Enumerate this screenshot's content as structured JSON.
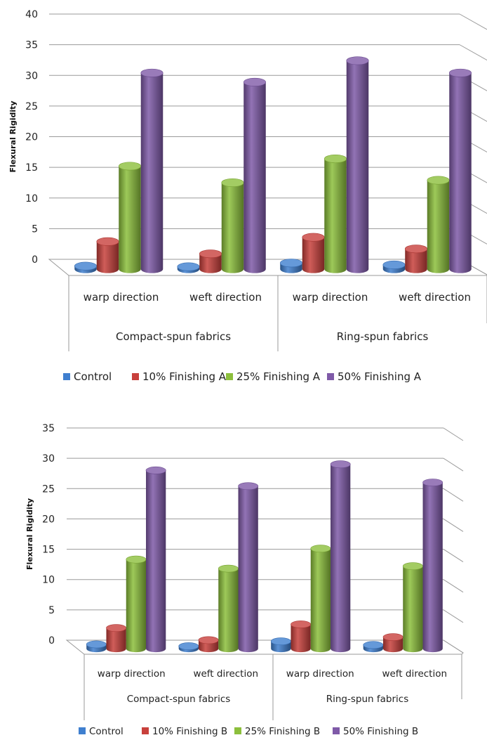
{
  "chart_data": [
    {
      "type": "bar",
      "ylabel": "Flexural Rigidity",
      "ylim": [
        0,
        40
      ],
      "yticks": [
        0,
        5,
        10,
        15,
        20,
        25,
        30,
        35,
        40
      ],
      "categories": [
        "warp direction",
        "weft direction",
        "warp direction",
        "weft direction"
      ],
      "groups": [
        "Compact-spun fabrics",
        "Ring-spun fabrics"
      ],
      "series": [
        {
          "name": "Control",
          "color": "#3f7fcf",
          "values": [
            0.5,
            0.4,
            1.0,
            0.7
          ]
        },
        {
          "name": "10% Finishing A",
          "color": "#c8403c",
          "values": [
            4.5,
            2.5,
            5.2,
            3.3
          ]
        },
        {
          "name": "25% Finishing A",
          "color": "#8cbf3c",
          "values": [
            16.8,
            14.1,
            18.0,
            14.5
          ]
        },
        {
          "name": "50% Finishing A",
          "color": "#7f5aa8",
          "values": [
            32.0,
            30.5,
            34.0,
            32.0
          ]
        }
      ],
      "legend": "bottom",
      "grid": true
    },
    {
      "type": "bar",
      "ylabel": "Flexural Rigidity",
      "ylim": [
        0,
        35
      ],
      "yticks": [
        0,
        5,
        10,
        15,
        20,
        25,
        30,
        35
      ],
      "categories": [
        "warp direction",
        "weft direction",
        "warp direction",
        "weft direction"
      ],
      "groups": [
        "Compact-spun fabrics",
        "Ring-spun fabrics"
      ],
      "series": [
        {
          "name": "Control",
          "color": "#3f7fcf",
          "values": [
            0.7,
            0.4,
            1.2,
            0.6
          ]
        },
        {
          "name": "10% Finishing B",
          "color": "#c8403c",
          "values": [
            3.4,
            1.4,
            4.0,
            1.9
          ]
        },
        {
          "name": "25% Finishing B",
          "color": "#8cbf3c",
          "values": [
            14.7,
            13.2,
            16.5,
            13.6
          ]
        },
        {
          "name": "50% Finishing B",
          "color": "#7f5aa8",
          "values": [
            29.4,
            26.8,
            30.4,
            27.4
          ]
        }
      ],
      "legend": "bottom",
      "grid": true
    }
  ]
}
